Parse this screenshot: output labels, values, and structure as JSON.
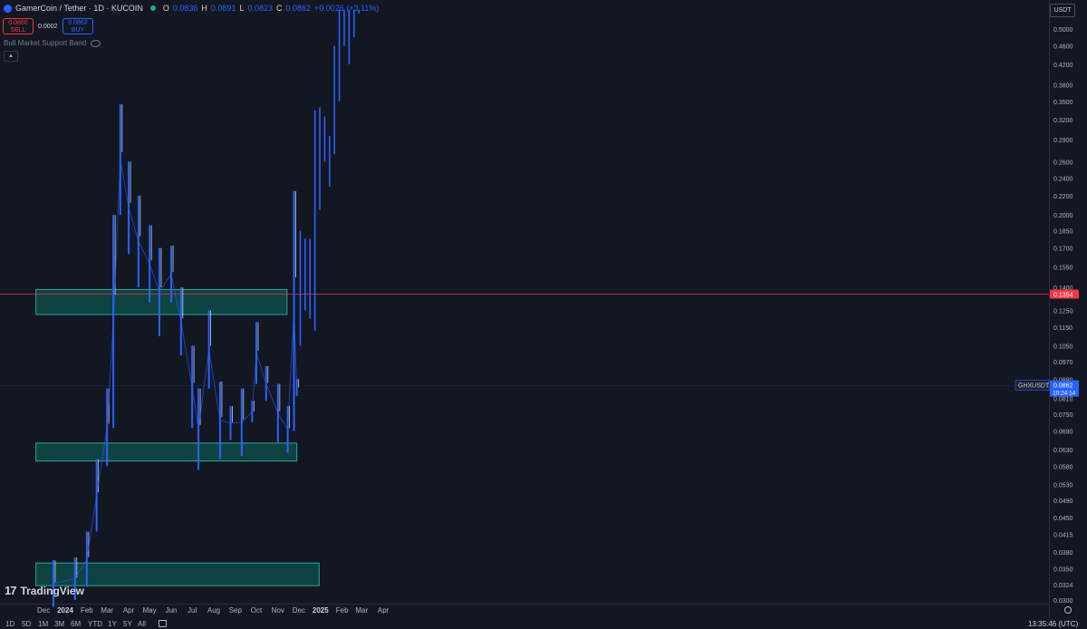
{
  "header": {
    "symbol_title": "GamerCoin / Tether · 1D · KUCOIN",
    "ohlc": [
      {
        "key": "O",
        "value": "0.0836"
      },
      {
        "key": "H",
        "value": "0.0891"
      },
      {
        "key": "L",
        "value": "0.0823"
      },
      {
        "key": "C",
        "value": "0.0862"
      }
    ],
    "change": "+0.0026 (+3.11%)"
  },
  "trade": {
    "sell_price": "0.0860",
    "sell_label": "SELL",
    "spread": "0.0002",
    "buy_price": "0.0862",
    "buy_label": "BUY"
  },
  "indicator": {
    "name": "Bull Market Support Band"
  },
  "currency": "USDT",
  "toolbar": {
    "timeframes": [
      "1D",
      "5D",
      "1M",
      "3M",
      "6M",
      "YTD",
      "1Y",
      "5Y",
      "All"
    ],
    "clock": "13:35:46 (UTC)"
  },
  "logo_text": "TradingView",
  "colors": {
    "background": "#131722",
    "candle": "#2962ff",
    "zone_fill": "#0f4a48",
    "zone_border": "#22ab94",
    "level_line": "#f23645"
  },
  "chart_data": {
    "type": "candlestick",
    "y_scale": "log",
    "ylim": [
      0.03,
      0.55
    ],
    "y_ticks": [
      "0.5000",
      "0.4600",
      "0.4200",
      "0.3800",
      "0.3500",
      "0.3200",
      "0.2900",
      "0.2600",
      "0.2400",
      "0.2200",
      "0.2000",
      "0.1850",
      "0.1700",
      "0.1550",
      "0.1400",
      "0.1250",
      "0.1150",
      "0.1050",
      "0.0970",
      "0.0890",
      "0.0810",
      "0.0750",
      "0.0690",
      "0.0630",
      "0.0580",
      "0.0530",
      "0.0490",
      "0.0450",
      "0.0415",
      "0.0380",
      "0.0350",
      "0.0324",
      "0.0300"
    ],
    "x_ticks": [
      "Dec",
      "2024",
      "Feb",
      "Mar",
      "Apr",
      "May",
      "Jun",
      "Jul",
      "Aug",
      "Sep",
      "Oct",
      "Nov",
      "Dec",
      "2025",
      "Feb",
      "Mar",
      "Apr"
    ],
    "price_label": {
      "symbol": "GHXUSDT",
      "value": "0.0862",
      "countdown": "10:24:14"
    },
    "level_line": {
      "value": 0.1354,
      "label": "0.1354"
    },
    "zones": [
      {
        "low": 0.1225,
        "high": 0.1385,
        "start": "2023-11-20",
        "end": "2024-11-14"
      },
      {
        "low": 0.0595,
        "high": 0.065,
        "start": "2023-11-20",
        "end": "2024-11-28"
      },
      {
        "low": 0.0322,
        "high": 0.036,
        "start": "2023-11-20",
        "end": "2024-12-30"
      }
    ],
    "series": [
      {
        "name": "price",
        "interval": "month",
        "points": [
          {
            "date": "2023-12-15",
            "low": 0.029,
            "high": 0.0365
          },
          {
            "date": "2024-01-15",
            "low": 0.03,
            "high": 0.037
          },
          {
            "date": "2024-02-01",
            "low": 0.032,
            "high": 0.042
          },
          {
            "date": "2024-02-15",
            "low": 0.042,
            "high": 0.06
          },
          {
            "date": "2024-03-01",
            "low": 0.058,
            "high": 0.085
          },
          {
            "date": "2024-03-10",
            "low": 0.07,
            "high": 0.2
          },
          {
            "date": "2024-03-20",
            "low": 0.2,
            "high": 0.345
          },
          {
            "date": "2024-04-01",
            "low": 0.165,
            "high": 0.26
          },
          {
            "date": "2024-04-15",
            "low": 0.14,
            "high": 0.22
          },
          {
            "date": "2024-05-01",
            "low": 0.13,
            "high": 0.19
          },
          {
            "date": "2024-05-15",
            "low": 0.11,
            "high": 0.17
          },
          {
            "date": "2024-06-01",
            "low": 0.13,
            "high": 0.172
          },
          {
            "date": "2024-06-15",
            "low": 0.1,
            "high": 0.14
          },
          {
            "date": "2024-07-01",
            "low": 0.07,
            "high": 0.105
          },
          {
            "date": "2024-07-10",
            "low": 0.057,
            "high": 0.085
          },
          {
            "date": "2024-07-25",
            "low": 0.085,
            "high": 0.125
          },
          {
            "date": "2024-08-10",
            "low": 0.06,
            "high": 0.088
          },
          {
            "date": "2024-08-25",
            "low": 0.066,
            "high": 0.078
          },
          {
            "date": "2024-09-10",
            "low": 0.061,
            "high": 0.085
          },
          {
            "date": "2024-09-25",
            "low": 0.072,
            "high": 0.08
          },
          {
            "date": "2024-10-01",
            "low": 0.087,
            "high": 0.118
          },
          {
            "date": "2024-10-15",
            "low": 0.08,
            "high": 0.095
          },
          {
            "date": "2024-11-01",
            "low": 0.065,
            "high": 0.087
          },
          {
            "date": "2024-11-15",
            "low": 0.062,
            "high": 0.078
          },
          {
            "date": "2024-11-24",
            "low": 0.069,
            "high": 0.225
          },
          {
            "date": "2024-11-28",
            "low": 0.082,
            "high": 0.0891
          }
        ]
      },
      {
        "name": "projection",
        "interval": "week",
        "points": [
          {
            "date": "2024-12-03",
            "low": 0.105,
            "high": 0.185
          },
          {
            "date": "2024-12-10",
            "low": 0.125,
            "high": 0.178
          },
          {
            "date": "2024-12-17",
            "low": 0.12,
            "high": 0.178
          },
          {
            "date": "2024-12-24",
            "low": 0.113,
            "high": 0.335
          },
          {
            "date": "2024-12-31",
            "low": 0.205,
            "high": 0.34
          },
          {
            "date": "2025-01-07",
            "low": 0.26,
            "high": 0.325
          },
          {
            "date": "2025-01-14",
            "low": 0.23,
            "high": 0.295
          },
          {
            "date": "2025-01-21",
            "low": 0.27,
            "high": 0.46
          },
          {
            "date": "2025-01-28",
            "low": 0.35,
            "high": 0.55
          },
          {
            "date": "2025-02-04",
            "low": 0.46,
            "high": 0.55
          },
          {
            "date": "2025-02-11",
            "low": 0.42,
            "high": 0.55
          },
          {
            "date": "2025-02-18",
            "low": 0.48,
            "high": 0.55
          },
          {
            "date": "2025-02-25",
            "low": 0.54,
            "high": 0.55
          }
        ]
      }
    ]
  }
}
